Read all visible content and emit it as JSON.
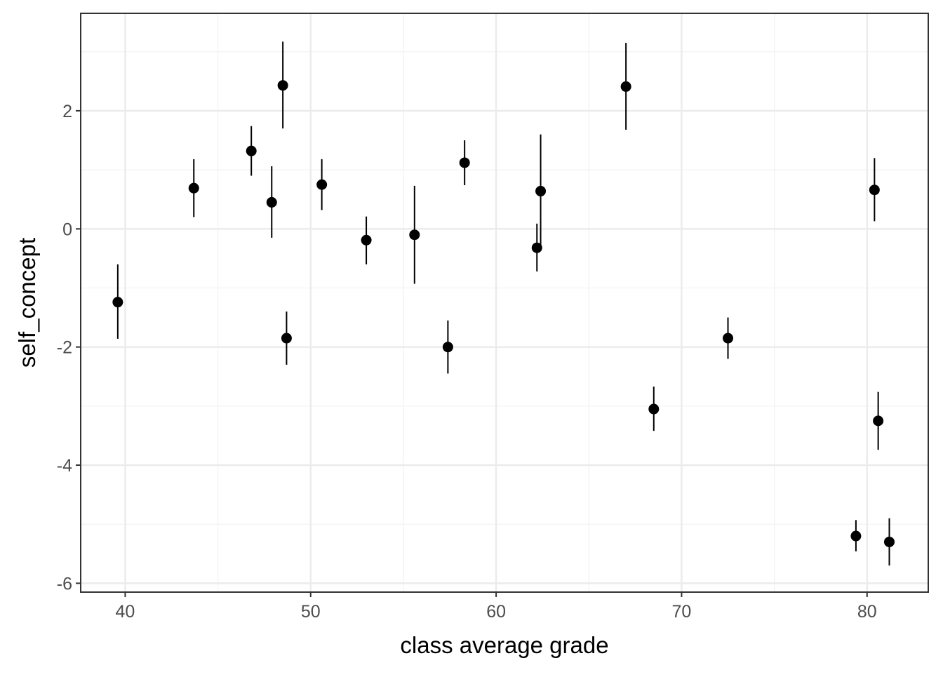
{
  "chart_data": {
    "type": "scatter",
    "title": "",
    "xlabel": "class average grade",
    "ylabel": "self_concept",
    "xlim": [
      37.6,
      83.3
    ],
    "ylim": [
      -6.15,
      3.65
    ],
    "x_ticks": [
      40,
      50,
      60,
      70,
      80
    ],
    "y_ticks": [
      -6,
      -4,
      -2,
      0,
      2
    ],
    "x_tick_labels": [
      "40",
      "50",
      "60",
      "70",
      "80"
    ],
    "y_tick_labels": [
      "-6",
      "-4",
      "-2",
      "0",
      "2"
    ],
    "x_minor_ticks": [
      45,
      55,
      65,
      75
    ],
    "y_minor_ticks": [
      -5,
      -3,
      -1,
      1,
      3
    ],
    "grid": true,
    "legend": "none",
    "error_bars": "vertical",
    "points": [
      {
        "x": 39.6,
        "y": -1.24,
        "ymin": -1.86,
        "ymax": -0.6
      },
      {
        "x": 43.7,
        "y": 0.69,
        "ymin": 0.2,
        "ymax": 1.18
      },
      {
        "x": 46.8,
        "y": 1.32,
        "ymin": 0.9,
        "ymax": 1.74
      },
      {
        "x": 47.9,
        "y": 0.45,
        "ymin": -0.15,
        "ymax": 1.06
      },
      {
        "x": 48.5,
        "y": 2.43,
        "ymin": 1.7,
        "ymax": 3.17
      },
      {
        "x": 48.7,
        "y": -1.85,
        "ymin": -2.3,
        "ymax": -1.4
      },
      {
        "x": 50.6,
        "y": 0.75,
        "ymin": 0.32,
        "ymax": 1.18
      },
      {
        "x": 53.0,
        "y": -0.19,
        "ymin": -0.6,
        "ymax": 0.21
      },
      {
        "x": 55.6,
        "y": -0.1,
        "ymin": -0.93,
        "ymax": 0.73
      },
      {
        "x": 57.4,
        "y": -2.0,
        "ymin": -2.45,
        "ymax": -1.55
      },
      {
        "x": 58.3,
        "y": 1.12,
        "ymin": 0.74,
        "ymax": 1.5
      },
      {
        "x": 62.2,
        "y": -0.32,
        "ymin": -0.72,
        "ymax": 0.09
      },
      {
        "x": 62.4,
        "y": 0.64,
        "ymin": -0.32,
        "ymax": 1.6
      },
      {
        "x": 67.0,
        "y": 2.41,
        "ymin": 1.68,
        "ymax": 3.15
      },
      {
        "x": 68.5,
        "y": -3.05,
        "ymin": -3.42,
        "ymax": -2.67
      },
      {
        "x": 72.5,
        "y": -1.85,
        "ymin": -2.2,
        "ymax": -1.5
      },
      {
        "x": 79.4,
        "y": -5.2,
        "ymin": -5.46,
        "ymax": -4.93
      },
      {
        "x": 80.4,
        "y": 0.66,
        "ymin": 0.13,
        "ymax": 1.2
      },
      {
        "x": 80.6,
        "y": -3.25,
        "ymin": -3.74,
        "ymax": -2.76
      },
      {
        "x": 81.2,
        "y": -5.3,
        "ymin": -5.7,
        "ymax": -4.9
      }
    ]
  }
}
